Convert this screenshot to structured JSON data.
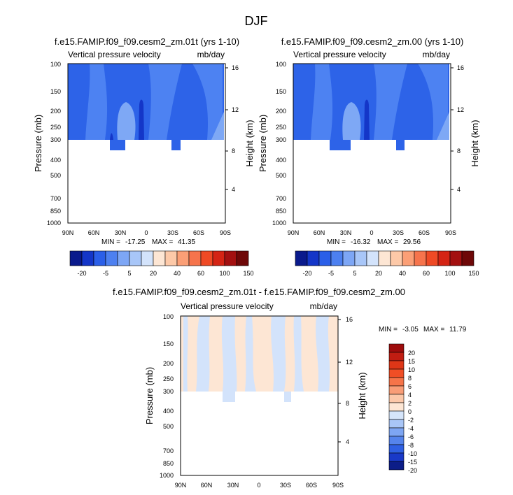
{
  "page": {
    "title": "DJF"
  },
  "chart_data": [
    {
      "type": "heatmap",
      "id": "top-left",
      "title": "f.e15.FAMIP.f09_f09.cesm2_zm.01t (yrs 1-10)",
      "variable": "Vertical pressure velocity",
      "units": "mb/day",
      "ylabel": "Pressure (mb)",
      "ylabel_right": "Height (km)",
      "x_ticks": [
        "90N",
        "60N",
        "30N",
        "0",
        "30S",
        "60S",
        "90S"
      ],
      "y_ticks": [
        "100",
        "150",
        "200",
        "250",
        "300",
        "400",
        "500",
        "700",
        "850",
        "1000"
      ],
      "y_ticks_right": [
        "16",
        "12",
        "8",
        "4"
      ],
      "min": "-17.25",
      "max": "41.35",
      "min_label": "MIN =",
      "max_label": "MAX =",
      "colorbar_labels": [
        "-20",
        "-5",
        "5",
        "20",
        "40",
        "60",
        "100",
        "150"
      ]
    },
    {
      "type": "heatmap",
      "id": "top-right",
      "title": "f.e15.FAMIP.f09_f09.cesm2_zm.00 (yrs 1-10)",
      "variable": "Vertical pressure velocity",
      "units": "mb/day",
      "ylabel": "Pressure (mb)",
      "ylabel_right": "Height (km)",
      "x_ticks": [
        "90N",
        "60N",
        "30N",
        "0",
        "30S",
        "60S",
        "90S"
      ],
      "y_ticks": [
        "100",
        "150",
        "200",
        "250",
        "300",
        "400",
        "500",
        "700",
        "850",
        "1000"
      ],
      "y_ticks_right": [
        "16",
        "12",
        "8",
        "4"
      ],
      "min": "-16.32",
      "max": "29.56",
      "min_label": "MIN =",
      "max_label": "MAX =",
      "colorbar_labels": [
        "-20",
        "-5",
        "5",
        "20",
        "40",
        "60",
        "100",
        "150"
      ]
    },
    {
      "type": "heatmap",
      "id": "difference",
      "title": "f.e15.FAMIP.f09_f09.cesm2_zm.01t - f.e15.FAMIP.f09_f09.cesm2_zm.00",
      "variable": "Vertical pressure velocity",
      "units": "mb/day",
      "ylabel": "Pressure (mb)",
      "ylabel_right": "Height (km)",
      "x_ticks": [
        "90N",
        "60N",
        "30N",
        "0",
        "30S",
        "60S",
        "90S"
      ],
      "y_ticks": [
        "100",
        "150",
        "200",
        "250",
        "300",
        "400",
        "500",
        "700",
        "850",
        "1000"
      ],
      "y_ticks_right": [
        "16",
        "12",
        "8",
        "4"
      ],
      "min": "-3.05",
      "max": "11.79",
      "min_label": "MIN =",
      "max_label": "MAX =",
      "colorbar_labels": [
        "20",
        "15",
        "10",
        "8",
        "6",
        "4",
        "2",
        "0",
        "-2",
        "-4",
        "-6",
        "-8",
        "-10",
        "-15",
        "-20"
      ]
    }
  ],
  "colors": {
    "main_scale": [
      "#0a1a8c",
      "#1436c8",
      "#2b5fe8",
      "#4d80f0",
      "#7da6f5",
      "#a8c6f8",
      "#d3e3fb",
      "#fde6d4",
      "#fdc9a8",
      "#fb9f76",
      "#f6744c",
      "#ef4a25",
      "#d42414",
      "#a31010",
      "#6e0808"
    ],
    "diff_scale": [
      "#9e0c0c",
      "#c11d12",
      "#de3617",
      "#f04e25",
      "#f67449",
      "#f99d77",
      "#fcc8a9",
      "#fde6d4",
      "#d5e5fb",
      "#a9c6f7",
      "#7ea6f3",
      "#5584ec",
      "#2f60e3",
      "#1939c8",
      "#0c1d88"
    ],
    "cold_fill": "#2d63e8",
    "mid_fill": "#4d82f2",
    "light_fill": "#7ea8f5",
    "core_fill": "#1436c8",
    "warm_fill": "#fde6d4",
    "cool_fill": "#d3e3fb"
  }
}
